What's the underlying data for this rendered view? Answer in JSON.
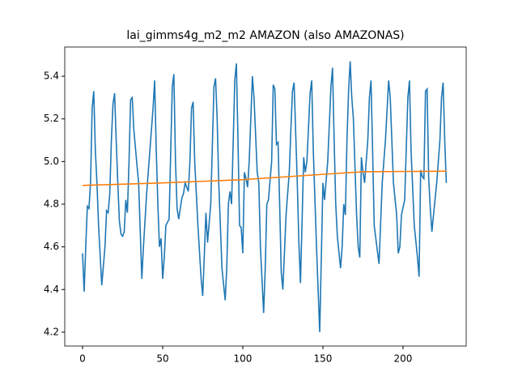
{
  "chart_data": {
    "type": "line",
    "title": "lai_gimms4g_m2_m2 AMAZON (also AMAZONAS)",
    "xlim": [
      -11.1,
      239.4
    ],
    "xticks": [
      0,
      50,
      100,
      150,
      200
    ],
    "ylim": [
      4.135,
      5.537
    ],
    "yticks": [
      4.2,
      4.4,
      4.6,
      4.8,
      {
        "value": 5,
        "label": "5.0"
      },
      5.2,
      5.4
    ],
    "series": [
      {
        "color": "#1f77b4",
        "x": [
          0,
          1,
          2,
          3,
          4,
          5,
          6,
          7,
          8,
          9,
          10,
          12,
          14,
          15,
          16,
          17,
          18,
          19,
          20,
          21,
          22,
          23,
          24,
          25,
          26,
          27,
          28,
          29,
          30,
          31,
          32,
          34,
          35,
          37,
          38,
          40,
          42,
          44,
          45,
          46,
          47,
          48,
          49,
          50,
          51,
          52,
          54,
          56,
          57,
          58,
          59,
          60,
          62,
          63,
          64,
          66,
          67,
          68,
          69,
          70,
          72,
          74,
          75,
          77,
          78,
          80,
          82,
          83,
          84,
          85,
          87,
          89,
          90,
          91,
          92,
          93,
          95,
          96,
          97,
          98,
          99,
          100,
          101,
          102,
          103,
          104,
          106,
          107,
          109,
          110,
          111,
          113,
          114,
          115,
          116,
          118,
          119,
          120,
          121,
          122,
          123,
          124,
          125,
          127,
          129,
          130,
          131,
          132,
          134,
          135,
          136,
          138,
          139,
          140,
          142,
          143,
          144,
          146,
          148,
          149,
          150,
          151,
          153,
          155,
          156,
          157,
          158,
          159,
          161,
          162,
          163,
          164,
          165,
          166,
          167,
          168,
          169,
          171,
          172,
          173,
          174,
          175,
          176,
          178,
          179,
          180,
          181,
          182,
          184,
          185,
          187,
          189,
          191,
          192,
          194,
          196,
          197,
          198,
          199,
          201,
          203,
          204,
          205,
          207,
          209,
          210,
          211,
          212,
          213,
          214,
          215,
          216,
          217,
          218,
          219,
          221,
          223,
          224,
          225,
          226,
          227
        ],
        "values": [
          4.57,
          4.39,
          4.6,
          4.79,
          4.78,
          4.9,
          5.25,
          5.33,
          5.05,
          4.9,
          4.7,
          4.42,
          4.6,
          4.77,
          4.76,
          4.85,
          5.1,
          5.27,
          5.32,
          5.1,
          4.9,
          4.72,
          4.66,
          4.65,
          4.67,
          4.82,
          4.76,
          5.0,
          5.29,
          5.3,
          5.15,
          4.98,
          4.9,
          4.45,
          4.6,
          4.85,
          5.05,
          5.25,
          5.38,
          5.05,
          4.8,
          4.6,
          4.64,
          4.45,
          4.55,
          4.7,
          4.73,
          5.35,
          5.41,
          5.0,
          4.78,
          4.73,
          4.83,
          4.85,
          4.9,
          4.86,
          5.0,
          5.25,
          5.28,
          5.0,
          4.7,
          4.45,
          4.37,
          4.76,
          4.62,
          4.8,
          5.35,
          5.39,
          5.2,
          4.9,
          4.5,
          4.35,
          4.5,
          4.8,
          4.86,
          4.8,
          5.38,
          5.46,
          5.1,
          4.7,
          4.69,
          4.57,
          4.95,
          4.92,
          4.88,
          5.0,
          5.4,
          5.3,
          4.95,
          4.9,
          4.6,
          4.29,
          4.5,
          4.8,
          4.82,
          5.0,
          5.36,
          5.34,
          5.08,
          5.09,
          4.8,
          4.48,
          4.4,
          4.75,
          4.95,
          5.15,
          5.33,
          5.37,
          4.9,
          4.62,
          4.43,
          5.02,
          4.95,
          5.0,
          5.32,
          5.38,
          5.05,
          4.6,
          4.2,
          4.55,
          4.9,
          4.82,
          5.0,
          5.35,
          5.44,
          5.1,
          4.8,
          4.65,
          4.5,
          4.6,
          4.8,
          4.75,
          5.1,
          5.33,
          5.47,
          5.3,
          5.2,
          4.75,
          4.6,
          4.55,
          5.02,
          4.95,
          4.9,
          5.1,
          5.3,
          5.38,
          5.05,
          4.7,
          4.58,
          4.52,
          4.9,
          5.1,
          5.38,
          5.3,
          4.9,
          4.75,
          4.57,
          4.6,
          4.75,
          4.82,
          5.3,
          5.38,
          5.05,
          4.7,
          4.55,
          4.46,
          4.96,
          4.93,
          4.92,
          5.33,
          5.34,
          4.92,
          4.78,
          4.67,
          4.75,
          4.9,
          5.1,
          5.3,
          5.37,
          5.1,
          4.9
        ]
      },
      {
        "color": "#ff7f0e",
        "x": [
          0,
          50,
          100,
          150,
          175,
          227
        ],
        "values": [
          4.888,
          4.9,
          4.915,
          4.94,
          4.952,
          4.955
        ]
      }
    ]
  }
}
